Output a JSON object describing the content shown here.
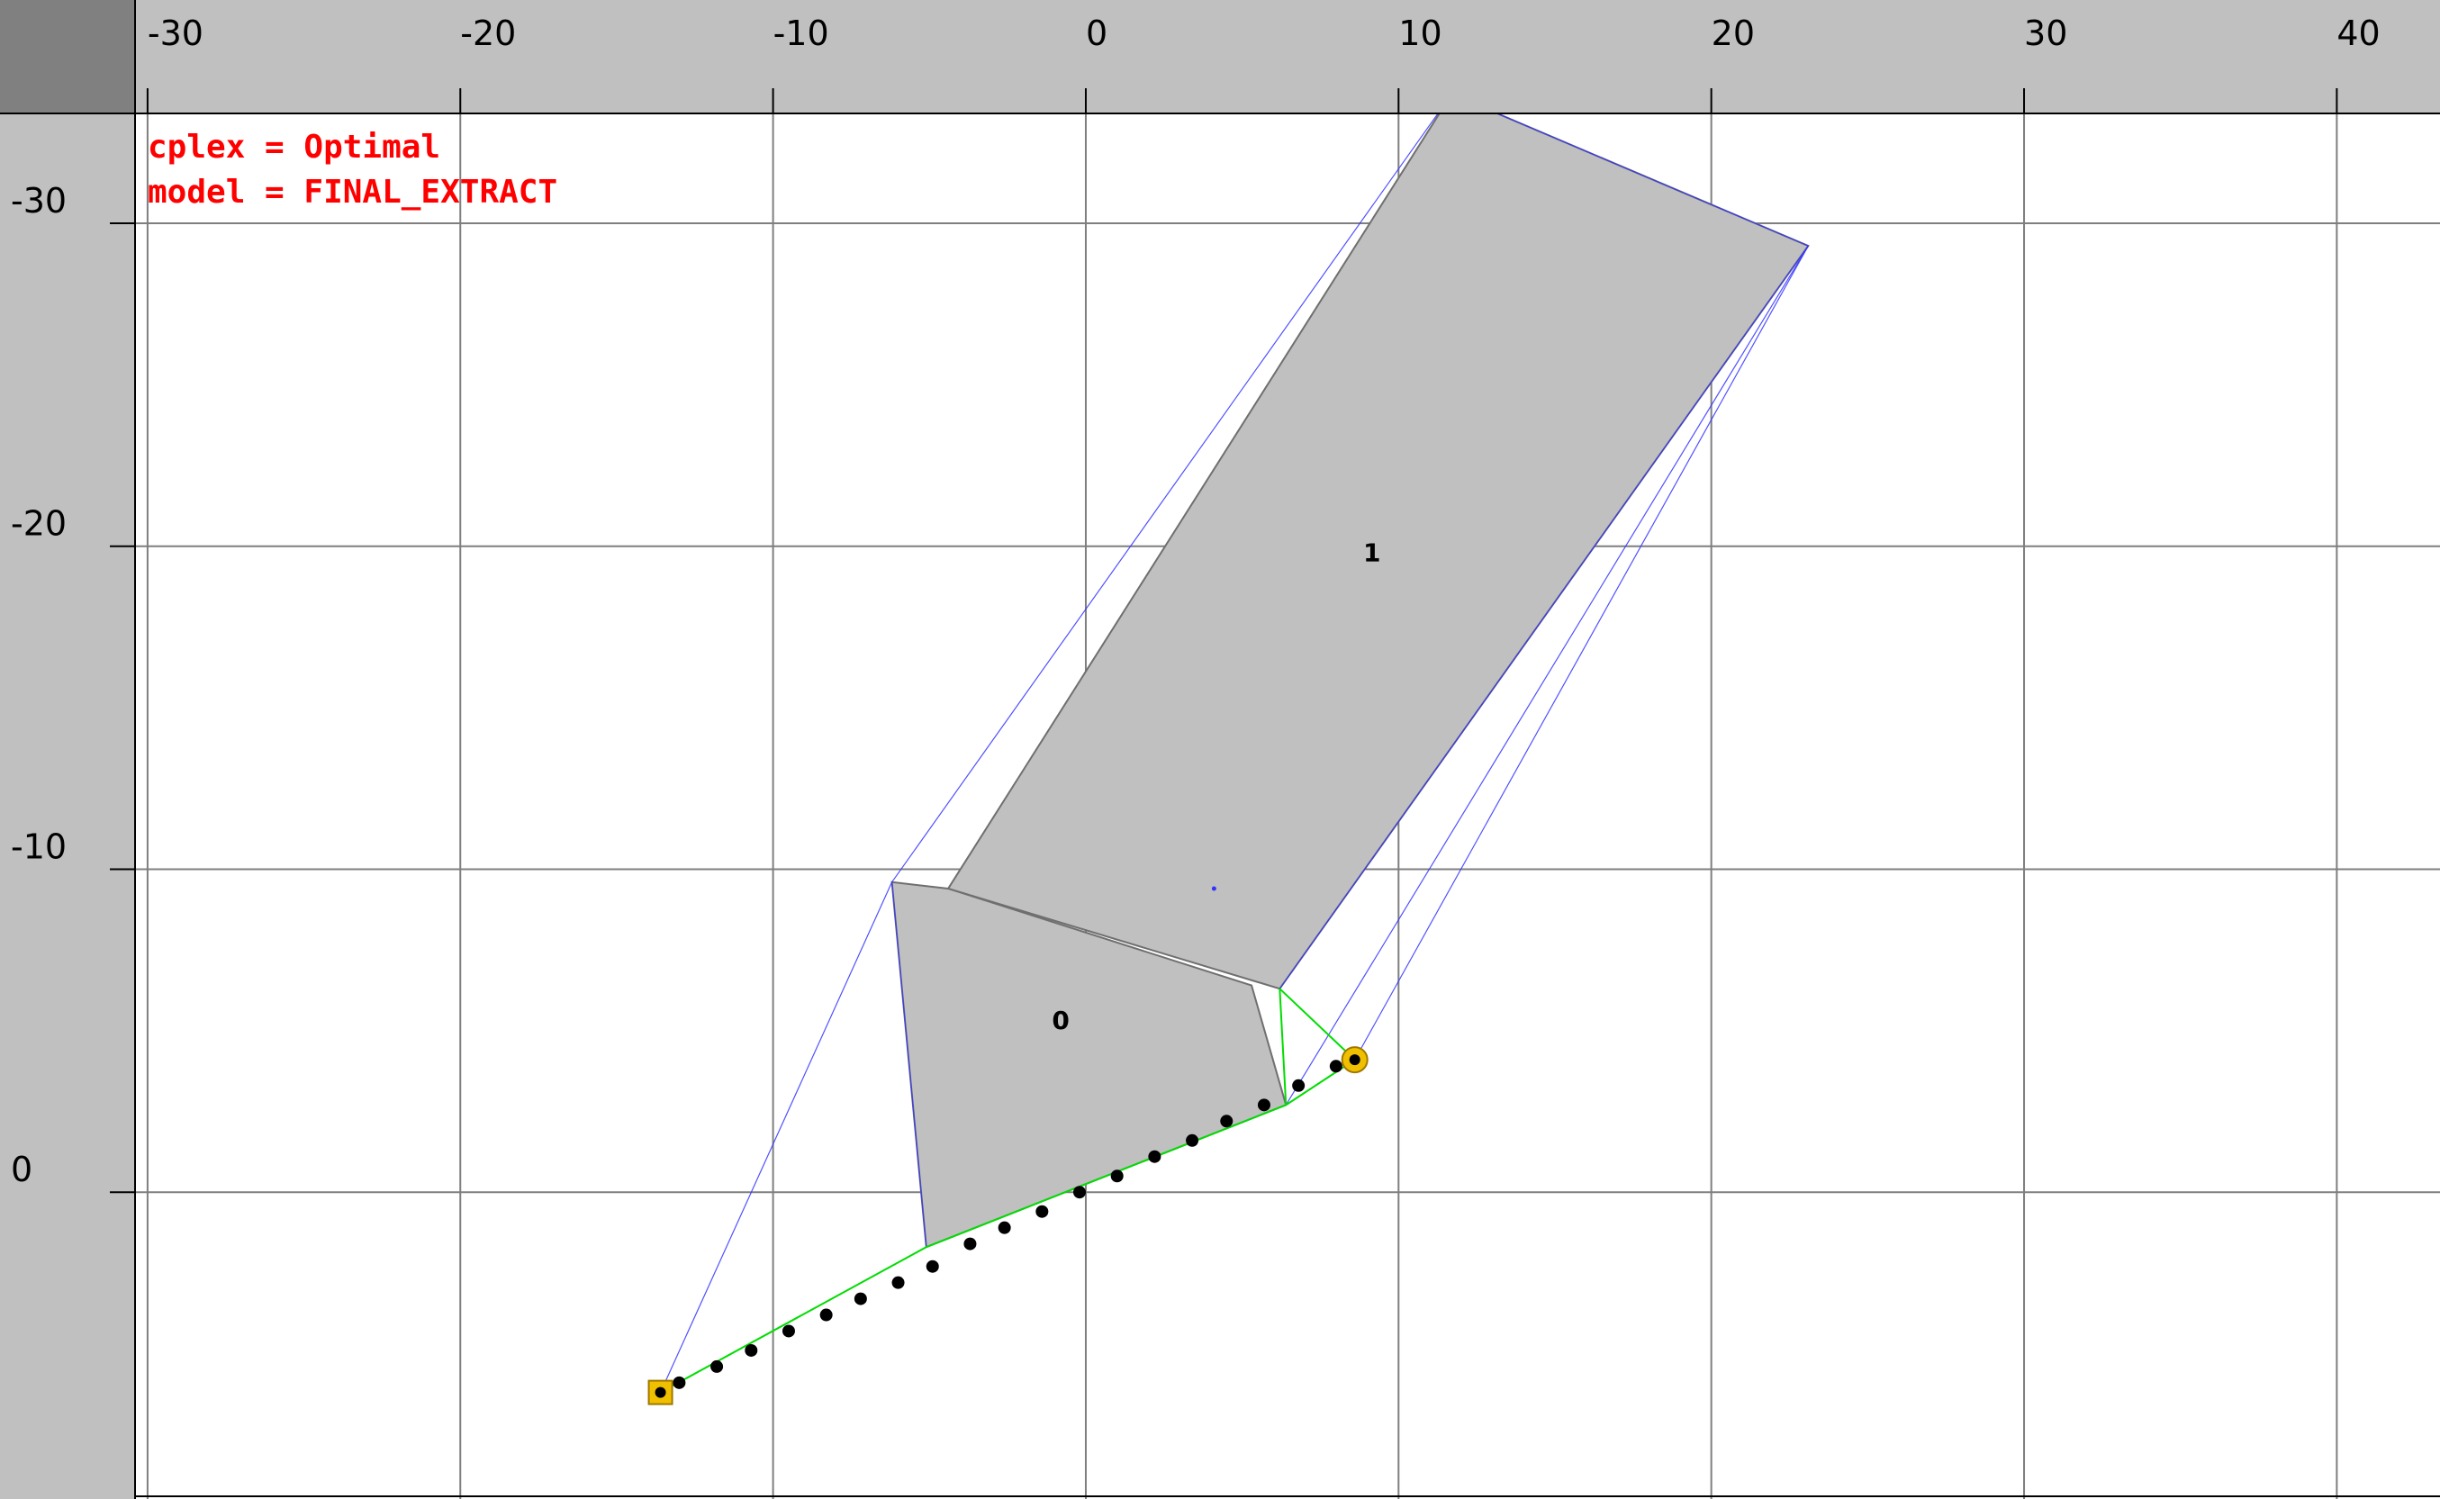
{
  "status": {
    "solver_line": "cplex = Optimal",
    "model_line": "model = FINAL_EXTRACT"
  },
  "axes": {
    "x_ticks": [
      -30,
      -20,
      -10,
      0,
      10,
      20,
      30,
      40
    ],
    "y_ticks": [
      -30,
      -20,
      -10,
      0
    ],
    "x_range": [
      -30.4,
      43.3
    ],
    "y_range": [
      -33.4,
      9.5
    ],
    "grid": true
  },
  "colors": {
    "ruler_bg": "#c0c0c0",
    "corner_bg": "#808080",
    "grid": "#7f7f7f",
    "obstacle_fill": "#c0c0c0",
    "obstacle_edge": "#6f6f6f",
    "visibility_line": "#3333ff",
    "path_line": "#00dd00",
    "status_text": "#ff0000",
    "endpoint_marker": "#f0c000",
    "waypoint": "#000000"
  },
  "obstacles": [
    {
      "label": "0",
      "vertices": [
        [
          -6.2,
          -9.6
        ],
        [
          -4.4,
          -9.4
        ],
        [
          5.3,
          -6.4
        ],
        [
          6.4,
          -2.7
        ],
        [
          -5.1,
          1.7
        ]
      ]
    },
    {
      "label": "1",
      "vertices": [
        [
          11.7,
          -34.0
        ],
        [
          23.1,
          -29.3
        ],
        [
          6.2,
          -6.3
        ],
        [
          -4.4,
          -9.4
        ]
      ]
    }
  ],
  "start_point": {
    "icon": "square-marker",
    "x": -13.6,
    "y": 6.2
  },
  "goal_point": {
    "icon": "circle-marker",
    "x": 8.6,
    "y": -4.1
  },
  "centroid_marker": {
    "x": 4.1,
    "y": -9.4
  },
  "path": [
    [
      -13.6,
      6.2
    ],
    [
      -5.1,
      1.7
    ],
    [
      6.4,
      -2.7
    ],
    [
      8.6,
      -4.1
    ]
  ],
  "visibility_edges": [
    [
      [
        -13.6,
        6.2
      ],
      [
        -6.2,
        -9.6
      ]
    ],
    [
      [
        -6.2,
        -9.6
      ],
      [
        11.7,
        -34.0
      ]
    ],
    [
      [
        11.7,
        -34.0
      ],
      [
        23.1,
        -29.3
      ]
    ],
    [
      [
        23.1,
        -29.3
      ],
      [
        8.6,
        -4.1
      ]
    ],
    [
      [
        23.1,
        -29.3
      ],
      [
        6.4,
        -2.7
      ]
    ],
    [
      [
        23.1,
        -29.3
      ],
      [
        6.2,
        -6.3
      ]
    ],
    [
      [
        -6.2,
        -9.6
      ],
      [
        -5.1,
        1.7
      ]
    ],
    [
      [
        -5.1,
        1.7
      ],
      [
        -13.6,
        6.2
      ]
    ],
    [
      [
        -5.1,
        1.7
      ],
      [
        6.4,
        -2.7
      ]
    ],
    [
      [
        6.4,
        -2.7
      ],
      [
        8.6,
        -4.1
      ]
    ]
  ],
  "path_support_edges": [
    [
      [
        6.2,
        -6.3
      ],
      [
        6.4,
        -2.7
      ]
    ],
    [
      [
        6.2,
        -6.3
      ],
      [
        8.6,
        -4.1
      ]
    ]
  ],
  "waypoints": [
    [
      -13.0,
      5.9
    ],
    [
      -11.8,
      5.4
    ],
    [
      -10.7,
      4.9
    ],
    [
      -9.5,
      4.3
    ],
    [
      -8.3,
      3.8
    ],
    [
      -7.2,
      3.3
    ],
    [
      -6.0,
      2.8
    ],
    [
      -4.9,
      2.3
    ],
    [
      -3.7,
      1.6
    ],
    [
      -2.6,
      1.1
    ],
    [
      -1.4,
      0.6
    ],
    [
      -0.2,
      0.0
    ],
    [
      1.0,
      -0.5
    ],
    [
      2.2,
      -1.1
    ],
    [
      3.4,
      -1.6
    ],
    [
      4.5,
      -2.2
    ],
    [
      5.7,
      -2.7
    ],
    [
      6.8,
      -3.3
    ],
    [
      8.0,
      -3.9
    ]
  ]
}
